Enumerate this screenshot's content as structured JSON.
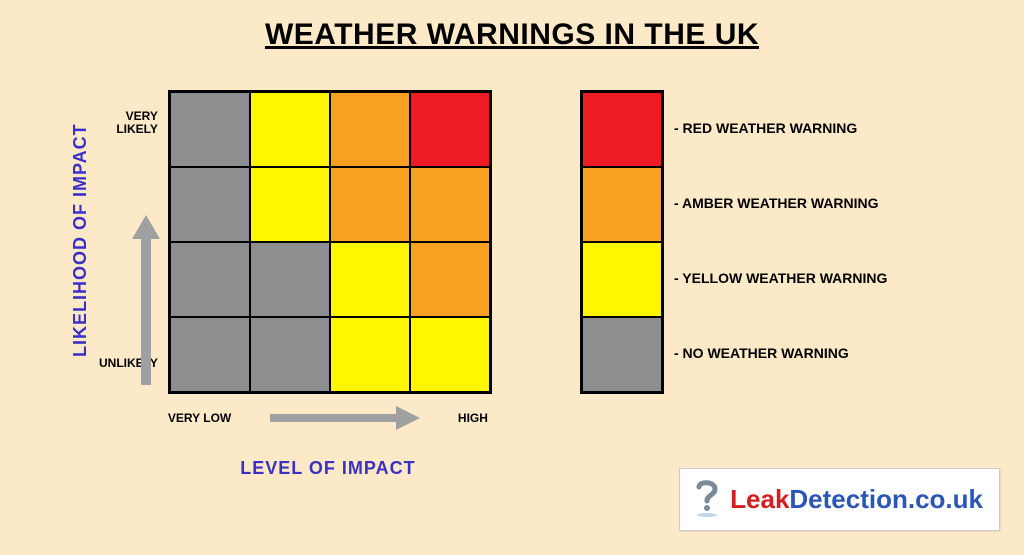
{
  "title": "WEATHER WARNINGS IN THE UK",
  "colors": {
    "background": "#fce9c7",
    "axis_label": "#3b2fc5",
    "arrow": "#9fa0a1",
    "grey": "#8d8e8f",
    "yellow": "#fff600",
    "amber": "#f7a021",
    "red": "#ed1c24",
    "border": "#000000"
  },
  "y_axis": {
    "label": "LIKELIHOOD OF IMPACT",
    "tick_high": "VERY\nLIKELY",
    "tick_low": "UNLIKELY"
  },
  "x_axis": {
    "label": "LEVEL OF IMPACT",
    "tick_low": "VERY LOW",
    "tick_high": "HIGH"
  },
  "matrix": {
    "rows": 4,
    "cols": 4,
    "cell_colors": [
      [
        "grey",
        "yellow",
        "amber",
        "red"
      ],
      [
        "grey",
        "yellow",
        "amber",
        "amber"
      ],
      [
        "grey",
        "grey",
        "yellow",
        "amber"
      ],
      [
        "grey",
        "grey",
        "yellow",
        "yellow"
      ]
    ]
  },
  "legend": [
    {
      "color": "red",
      "label": "- RED WEATHER WARNING"
    },
    {
      "color": "amber",
      "label": "- AMBER WEATHER WARNING"
    },
    {
      "color": "yellow",
      "label": "- YELLOW WEATHER WARNING"
    },
    {
      "color": "grey",
      "label": "- NO WEATHER WARNING"
    }
  ],
  "brand": {
    "leak": "Leak",
    "rest": "Detection.co.uk",
    "icon_color": "#7a8a99"
  }
}
